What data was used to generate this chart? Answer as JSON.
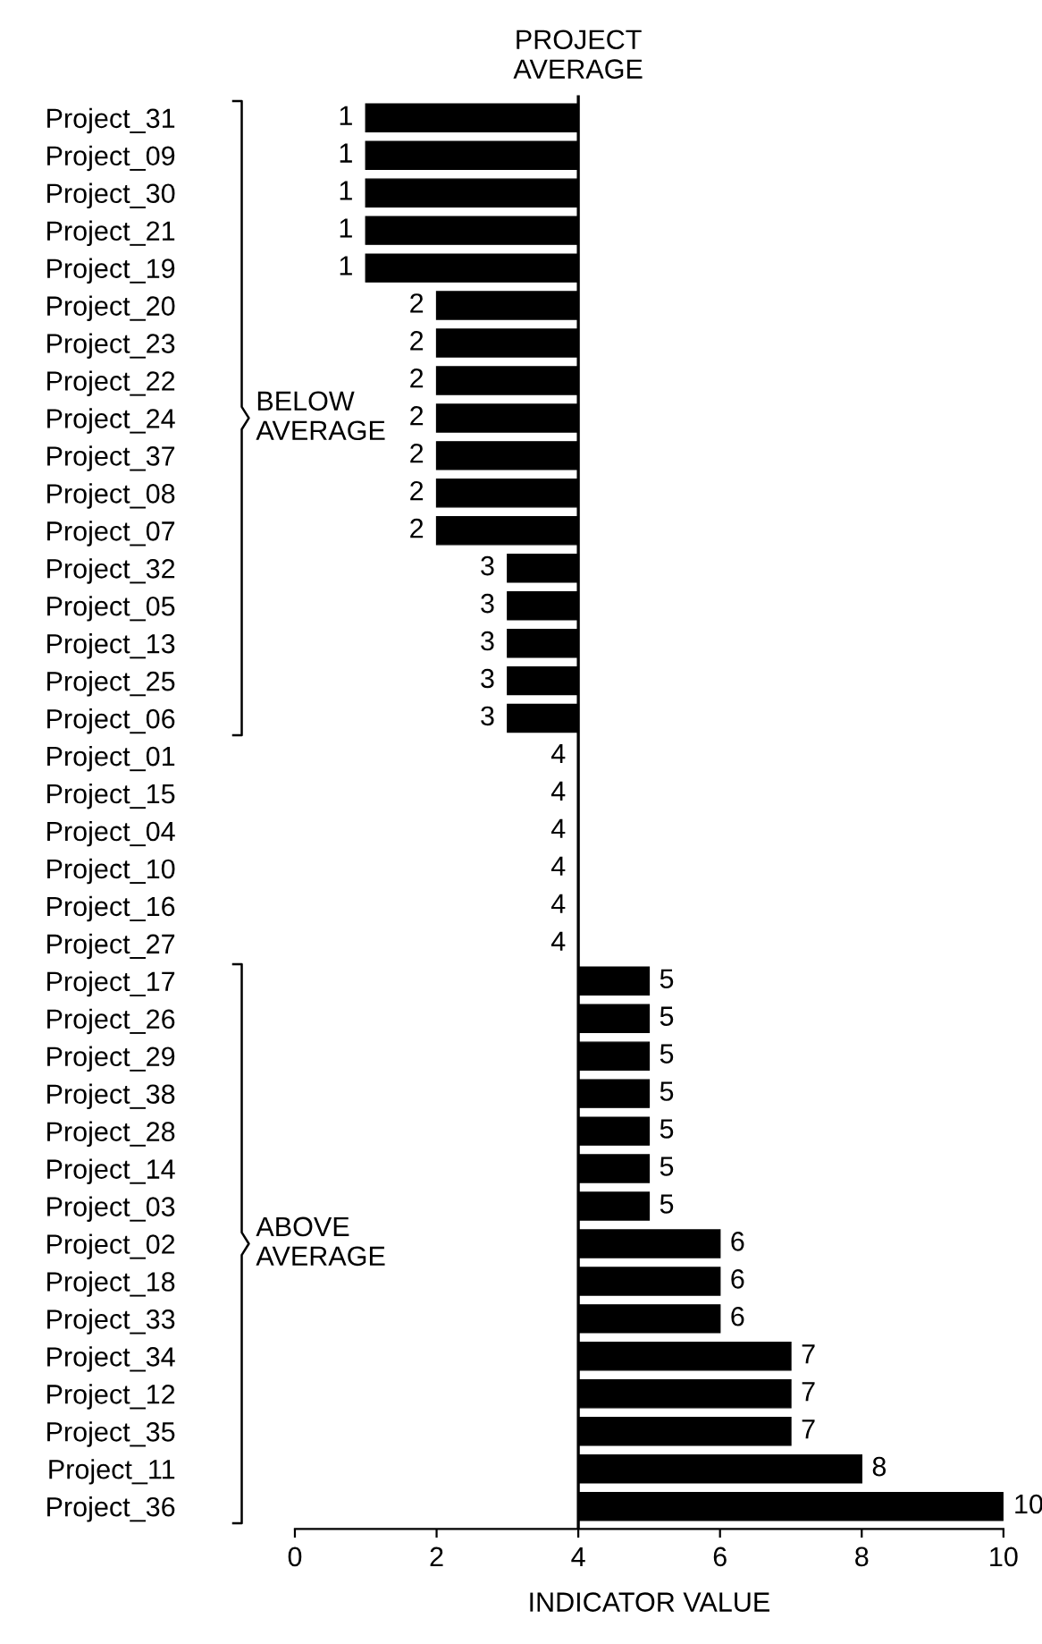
{
  "chart_data": {
    "type": "bar",
    "orientation": "horizontal",
    "xlabel": "INDICATOR VALUE",
    "categories": [
      "Project_31",
      "Project_09",
      "Project_30",
      "Project_21",
      "Project_19",
      "Project_20",
      "Project_23",
      "Project_22",
      "Project_24",
      "Project_37",
      "Project_08",
      "Project_07",
      "Project_32",
      "Project_05",
      "Project_13",
      "Project_25",
      "Project_06",
      "Project_01",
      "Project_15",
      "Project_04",
      "Project_10",
      "Project_16",
      "Project_27",
      "Project_17",
      "Project_26",
      "Project_29",
      "Project_38",
      "Project_28",
      "Project_14",
      "Project_03",
      "Project_02",
      "Project_18",
      "Project_33",
      "Project_34",
      "Project_12",
      "Project_35",
      "Project_11",
      "Project_36"
    ],
    "base": [
      4,
      4,
      4,
      4,
      4,
      4,
      4,
      4,
      4,
      4,
      4,
      4,
      4,
      4,
      4,
      4,
      4,
      4,
      4,
      4,
      4,
      4,
      4,
      4,
      4,
      4,
      4,
      4,
      4,
      4,
      4,
      4,
      4,
      4,
      4,
      4,
      4,
      4
    ],
    "values": [
      -3,
      -3,
      -3,
      -3,
      -3,
      -2,
      -2,
      -2,
      -2,
      -2,
      -2,
      -2,
      -1,
      -1,
      -1,
      -1,
      -1,
      0,
      0,
      0,
      0,
      0,
      0,
      1,
      1,
      1,
      1,
      1,
      1,
      1,
      2,
      2,
      2,
      3,
      3,
      3,
      4,
      6
    ],
    "value_labels": [
      "1",
      "1",
      "1",
      "1",
      "1",
      "2",
      "2",
      "2",
      "2",
      "2",
      "2",
      "2",
      "3",
      "3",
      "3",
      "3",
      "3",
      "4",
      "4",
      "4",
      "4",
      "4",
      "4",
      "5",
      "5",
      "5",
      "5",
      "5",
      "5",
      "5",
      "6",
      "6",
      "6",
      "7",
      "7",
      "7",
      "8",
      "10"
    ],
    "color": "#000000",
    "xlim": [
      0,
      10
    ],
    "xticks": [
      0,
      2,
      4,
      6,
      8,
      10
    ],
    "ref_lines": [
      {
        "axis": "x",
        "value": 4,
        "label": "PROJECT\nAVERAGE",
        "color": "#000000"
      }
    ],
    "annotations": [
      "BELOW\nAVERAGE",
      "ABOVE\nAVERAGE"
    ],
    "grid": false,
    "legend": false
  }
}
